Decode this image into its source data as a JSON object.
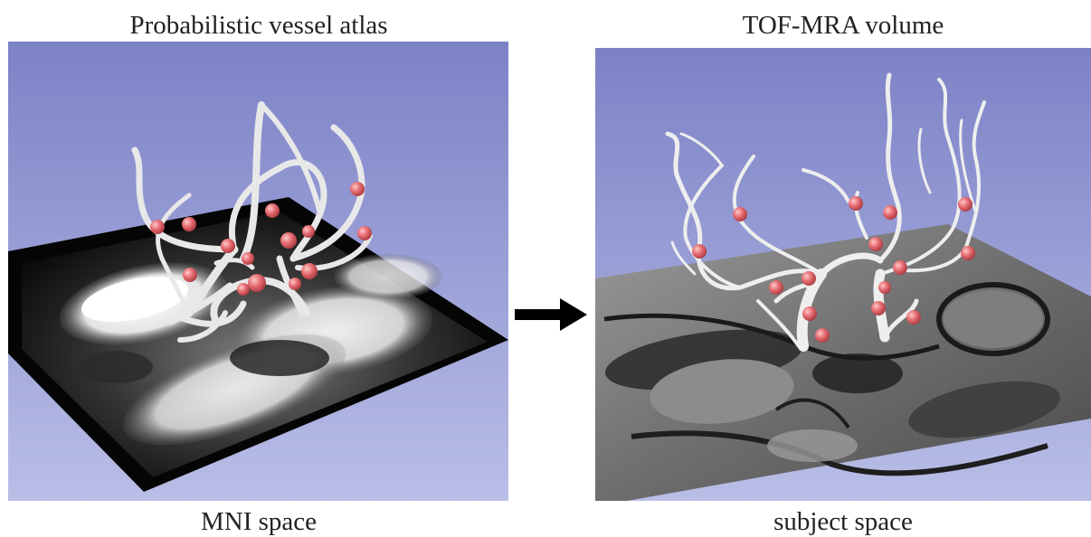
{
  "left_panel": {
    "title": "Probabilistic vessel atlas",
    "space_label": "MNI space"
  },
  "right_panel": {
    "title": "TOF-MRA volume",
    "space_label": "subject space"
  },
  "colors": {
    "background_gradient_top": "#7f85c8",
    "background_gradient_bottom": "#b7bce6",
    "vessel": "#e9e9e9",
    "landmark": "#e06a6e",
    "arrow": "#000000"
  },
  "icons": {
    "transform_arrow": "right-arrow-icon"
  }
}
